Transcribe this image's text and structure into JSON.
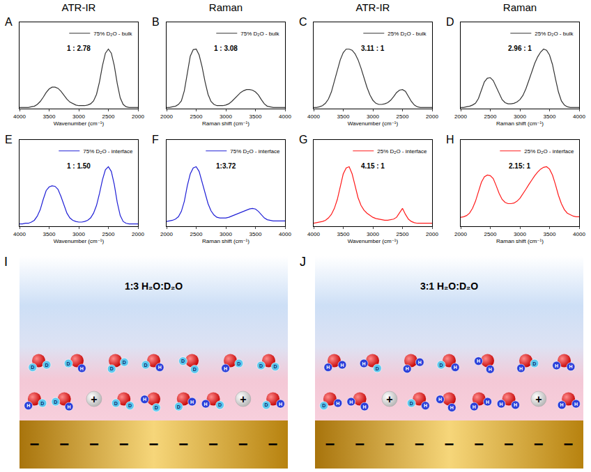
{
  "columns": [
    "ATR-IR",
    "Raman",
    "ATR-IR",
    "Raman"
  ],
  "chart_data": [
    {
      "type": "line",
      "panel": "A",
      "xlabel": "Wavenumber (cm⁻¹)",
      "annotations": [
        "1 : 2.78"
      ],
      "xlim": [
        4000,
        2000
      ],
      "xticks": [
        4000,
        3500,
        3000,
        2500,
        2000
      ],
      "ylim": [
        0,
        1.45
      ],
      "yticks": [],
      "tick_labels": "x",
      "grid": false,
      "legend": "upper right",
      "x": [
        4000,
        3950,
        3900,
        3850,
        3800,
        3750,
        3700,
        3650,
        3600,
        3550,
        3500,
        3450,
        3400,
        3350,
        3300,
        3250,
        3200,
        3150,
        3100,
        3050,
        3000,
        2950,
        2900,
        2850,
        2800,
        2750,
        2700,
        2650,
        2600,
        2550,
        2500,
        2450,
        2400,
        2350,
        2300,
        2250,
        2200,
        2150,
        2100,
        2050,
        2000
      ],
      "series": [
        {
          "name": "75% D₂O - bulk",
          "color": "#333333",
          "values": [
            0.02,
            0.02,
            0.02,
            0.02,
            0.03,
            0.04,
            0.07,
            0.12,
            0.19,
            0.27,
            0.33,
            0.36,
            0.36,
            0.34,
            0.29,
            0.22,
            0.16,
            0.11,
            0.08,
            0.06,
            0.05,
            0.05,
            0.05,
            0.06,
            0.08,
            0.13,
            0.24,
            0.45,
            0.72,
            0.93,
            1.0,
            0.93,
            0.72,
            0.42,
            0.18,
            0.07,
            0.03,
            0.02,
            0.02,
            0.02,
            0.02
          ]
        }
      ]
    },
    {
      "type": "line",
      "panel": "B",
      "xlabel": "Raman shift (cm⁻¹)",
      "annotations": [
        "1 : 3.08"
      ],
      "xlim": [
        2000,
        4000
      ],
      "xticks": [
        2000,
        2500,
        3000,
        3500,
        4000
      ],
      "ylim": [
        0,
        1.45
      ],
      "yticks": [],
      "tick_labels": "x",
      "grid": false,
      "legend": "upper right",
      "x": [
        2000,
        2050,
        2100,
        2150,
        2200,
        2250,
        2300,
        2350,
        2400,
        2450,
        2500,
        2550,
        2600,
        2650,
        2700,
        2750,
        2800,
        2850,
        2900,
        2950,
        3000,
        3050,
        3100,
        3150,
        3200,
        3250,
        3300,
        3350,
        3400,
        3450,
        3500,
        3550,
        3600,
        3650,
        3700,
        3750,
        3800,
        3850,
        3900,
        3950,
        4000
      ],
      "series": [
        {
          "name": "75% D₂O - bulk",
          "color": "#333333",
          "values": [
            0.02,
            0.02,
            0.03,
            0.04,
            0.07,
            0.13,
            0.3,
            0.6,
            0.88,
            0.99,
            1.0,
            0.9,
            0.7,
            0.45,
            0.24,
            0.12,
            0.07,
            0.05,
            0.05,
            0.05,
            0.06,
            0.08,
            0.12,
            0.17,
            0.22,
            0.27,
            0.3,
            0.32,
            0.32,
            0.31,
            0.28,
            0.23,
            0.15,
            0.08,
            0.04,
            0.03,
            0.02,
            0.02,
            0.02,
            0.02,
            0.02
          ]
        }
      ]
    },
    {
      "type": "line",
      "panel": "C",
      "xlabel": "Wavenumber (cm⁻¹)",
      "annotations": [
        "3.11 : 1"
      ],
      "xlim": [
        4000,
        2000
      ],
      "xticks": [
        4000,
        3500,
        3000,
        2500,
        2000
      ],
      "ylim": [
        0,
        1.45
      ],
      "yticks": [],
      "tick_labels": "x",
      "grid": false,
      "legend": "upper right",
      "x": [
        4000,
        3950,
        3900,
        3850,
        3800,
        3750,
        3700,
        3650,
        3600,
        3550,
        3500,
        3450,
        3400,
        3350,
        3300,
        3250,
        3200,
        3150,
        3100,
        3050,
        3000,
        2950,
        2900,
        2850,
        2800,
        2750,
        2700,
        2650,
        2600,
        2550,
        2500,
        2450,
        2400,
        2350,
        2300,
        2250,
        2200,
        2150,
        2100,
        2050,
        2000
      ],
      "series": [
        {
          "name": "25% D₂O - bulk",
          "color": "#333333",
          "values": [
            0.02,
            0.02,
            0.03,
            0.05,
            0.09,
            0.16,
            0.28,
            0.45,
            0.64,
            0.82,
            0.94,
            1.0,
            1.0,
            0.98,
            0.92,
            0.82,
            0.68,
            0.52,
            0.36,
            0.23,
            0.14,
            0.09,
            0.07,
            0.07,
            0.08,
            0.1,
            0.14,
            0.2,
            0.27,
            0.31,
            0.32,
            0.29,
            0.21,
            0.12,
            0.06,
            0.03,
            0.02,
            0.02,
            0.02,
            0.02,
            0.02
          ]
        }
      ]
    },
    {
      "type": "line",
      "panel": "D",
      "xlabel": "Raman shift (cm⁻¹)",
      "annotations": [
        "2.96 : 1"
      ],
      "xlim": [
        2000,
        4000
      ],
      "xticks": [
        2000,
        2500,
        3000,
        3500,
        4000
      ],
      "ylim": [
        0,
        1.45
      ],
      "yticks": [],
      "tick_labels": "x",
      "grid": false,
      "legend": "upper right",
      "x": [
        2000,
        2050,
        2100,
        2150,
        2200,
        2250,
        2300,
        2350,
        2400,
        2450,
        2500,
        2550,
        2600,
        2650,
        2700,
        2750,
        2800,
        2850,
        2900,
        2950,
        3000,
        3050,
        3100,
        3150,
        3200,
        3250,
        3300,
        3350,
        3400,
        3450,
        3500,
        3550,
        3600,
        3650,
        3700,
        3750,
        3800,
        3850,
        3900,
        3950,
        4000
      ],
      "series": [
        {
          "name": "25% D₂O - bulk",
          "color": "#333333",
          "values": [
            0.02,
            0.02,
            0.03,
            0.04,
            0.06,
            0.09,
            0.17,
            0.32,
            0.45,
            0.51,
            0.52,
            0.47,
            0.36,
            0.24,
            0.15,
            0.1,
            0.08,
            0.08,
            0.09,
            0.11,
            0.15,
            0.22,
            0.33,
            0.47,
            0.62,
            0.76,
            0.87,
            0.95,
            1.0,
            0.98,
            0.9,
            0.74,
            0.5,
            0.28,
            0.13,
            0.06,
            0.03,
            0.02,
            0.02,
            0.02,
            0.02
          ]
        }
      ]
    },
    {
      "type": "line",
      "panel": "E",
      "xlabel": "Wavenumber (cm⁻¹)",
      "annotations": [
        "1 : 1.50"
      ],
      "xlim": [
        4000,
        2000
      ],
      "xticks": [
        4000,
        3500,
        3000,
        2500,
        2000
      ],
      "ylim": [
        0,
        1.45
      ],
      "yticks": [],
      "tick_labels": "x",
      "grid": false,
      "legend": "upper right",
      "x": [
        4000,
        3950,
        3900,
        3850,
        3800,
        3750,
        3700,
        3650,
        3600,
        3550,
        3500,
        3450,
        3400,
        3350,
        3300,
        3250,
        3200,
        3150,
        3100,
        3050,
        3000,
        2950,
        2900,
        2850,
        2800,
        2750,
        2700,
        2650,
        2600,
        2550,
        2500,
        2450,
        2400,
        2350,
        2300,
        2250,
        2200,
        2150,
        2100,
        2050,
        2000
      ],
      "series": [
        {
          "name": "75% D₂O - interface",
          "color": "#1f1fd6",
          "values": [
            0.04,
            0.04,
            0.05,
            0.05,
            0.07,
            0.1,
            0.17,
            0.28,
            0.45,
            0.6,
            0.66,
            0.68,
            0.67,
            0.62,
            0.5,
            0.35,
            0.22,
            0.14,
            0.1,
            0.08,
            0.07,
            0.07,
            0.08,
            0.1,
            0.14,
            0.22,
            0.35,
            0.55,
            0.78,
            0.95,
            1.0,
            0.92,
            0.7,
            0.4,
            0.18,
            0.08,
            0.05,
            0.04,
            0.04,
            0.04,
            0.04
          ]
        }
      ]
    },
    {
      "type": "line",
      "panel": "F",
      "xlabel": "Raman shift (cm⁻¹)",
      "annotations": [
        "1:3.72"
      ],
      "xlim": [
        2000,
        4000
      ],
      "xticks": [
        2000,
        2500,
        3000,
        3500,
        4000
      ],
      "ylim": [
        0,
        1.45
      ],
      "yticks": [],
      "tick_labels": "x",
      "grid": false,
      "legend": "upper right",
      "x": [
        2000,
        2050,
        2100,
        2150,
        2200,
        2250,
        2300,
        2350,
        2400,
        2450,
        2500,
        2550,
        2600,
        2650,
        2700,
        2750,
        2800,
        2850,
        2900,
        2950,
        3000,
        3050,
        3100,
        3150,
        3200,
        3250,
        3300,
        3350,
        3400,
        3450,
        3500,
        3550,
        3600,
        3650,
        3700,
        3750,
        3800,
        3850,
        3900,
        3950,
        4000
      ],
      "series": [
        {
          "name": "75% D₂O - interface",
          "color": "#1f1fd6",
          "values": [
            0.08,
            0.09,
            0.1,
            0.12,
            0.16,
            0.25,
            0.42,
            0.68,
            0.88,
            0.98,
            1.0,
            0.92,
            0.75,
            0.55,
            0.38,
            0.26,
            0.19,
            0.15,
            0.14,
            0.14,
            0.14,
            0.15,
            0.17,
            0.19,
            0.21,
            0.23,
            0.25,
            0.27,
            0.29,
            0.3,
            0.29,
            0.25,
            0.19,
            0.14,
            0.11,
            0.1,
            0.09,
            0.09,
            0.09,
            0.09,
            0.09
          ]
        }
      ]
    },
    {
      "type": "line",
      "panel": "G",
      "xlabel": "Wavenumber (cm⁻¹)",
      "annotations": [
        "4.15 : 1"
      ],
      "xlim": [
        4000,
        2000
      ],
      "xticks": [
        4000,
        3500,
        3000,
        2500,
        2000
      ],
      "ylim": [
        0,
        1.45
      ],
      "yticks": [],
      "tick_labels": "x",
      "grid": false,
      "legend": "upper right",
      "x": [
        4000,
        3950,
        3900,
        3850,
        3800,
        3750,
        3700,
        3650,
        3600,
        3550,
        3500,
        3450,
        3400,
        3350,
        3300,
        3250,
        3200,
        3150,
        3100,
        3050,
        3000,
        2950,
        2900,
        2850,
        2800,
        2750,
        2700,
        2650,
        2600,
        2550,
        2500,
        2450,
        2400,
        2350,
        2300,
        2250,
        2200,
        2150,
        2100,
        2050,
        2000
      ],
      "series": [
        {
          "name": "25% D₂O - interface",
          "color": "#ff1a1a",
          "values": [
            0.05,
            0.06,
            0.07,
            0.08,
            0.1,
            0.14,
            0.2,
            0.3,
            0.45,
            0.68,
            0.88,
            0.98,
            1.0,
            0.88,
            0.68,
            0.48,
            0.35,
            0.27,
            0.22,
            0.18,
            0.15,
            0.13,
            0.12,
            0.11,
            0.1,
            0.1,
            0.11,
            0.12,
            0.15,
            0.22,
            0.3,
            0.2,
            0.12,
            0.08,
            0.06,
            0.05,
            0.05,
            0.05,
            0.05,
            0.05,
            0.05
          ]
        }
      ]
    },
    {
      "type": "line",
      "panel": "H",
      "xlabel": "Raman shift (cm⁻¹)",
      "annotations": [
        "2.15: 1"
      ],
      "xlim": [
        2000,
        4000
      ],
      "xticks": [
        2000,
        2500,
        3000,
        3500,
        4000
      ],
      "ylim": [
        0,
        1.45
      ],
      "yticks": [],
      "tick_labels": "x",
      "grid": false,
      "legend": "upper right",
      "x": [
        2000,
        2050,
        2100,
        2150,
        2200,
        2250,
        2300,
        2350,
        2400,
        2450,
        2500,
        2550,
        2600,
        2650,
        2700,
        2750,
        2800,
        2850,
        2900,
        2950,
        3000,
        3050,
        3100,
        3150,
        3200,
        3250,
        3300,
        3350,
        3400,
        3450,
        3500,
        3550,
        3600,
        3650,
        3700,
        3750,
        3800,
        3850,
        3900,
        3950,
        4000
      ],
      "series": [
        {
          "name": "25% D₂O - interface",
          "color": "#ff1a1a",
          "values": [
            0.15,
            0.16,
            0.18,
            0.22,
            0.3,
            0.42,
            0.58,
            0.74,
            0.83,
            0.86,
            0.85,
            0.8,
            0.68,
            0.55,
            0.45,
            0.4,
            0.38,
            0.38,
            0.39,
            0.42,
            0.47,
            0.54,
            0.62,
            0.7,
            0.78,
            0.85,
            0.91,
            0.96,
            0.99,
            1.0,
            0.96,
            0.86,
            0.7,
            0.52,
            0.38,
            0.28,
            0.22,
            0.19,
            0.17,
            0.16,
            0.16
          ]
        }
      ]
    }
  ],
  "diagrams": [
    {
      "panel": "I",
      "title": "1:3 H₂O:D₂O",
      "upper_row": [
        [
          "D",
          "D"
        ],
        [
          "H",
          "D"
        ],
        [
          "D",
          "D"
        ],
        [
          "H",
          "D"
        ],
        [
          "D",
          "D"
        ],
        [
          "D",
          "H"
        ],
        [
          "D",
          "D"
        ]
      ],
      "lower_row": [
        [
          "D",
          "H"
        ],
        [
          "H",
          "D"
        ],
        "+",
        [
          "D",
          "D"
        ],
        [
          "D",
          "H"
        ],
        [
          "H",
          "D"
        ],
        [
          "D",
          "H"
        ],
        "+",
        [
          "H",
          "D"
        ]
      ],
      "electrode": {
        "charge": "−",
        "count": 9
      }
    },
    {
      "panel": "J",
      "title": "3:1 H₂O:D₂O",
      "upper_row": [
        [
          "H",
          "H"
        ],
        [
          "D",
          "H"
        ],
        [
          "H",
          "H"
        ],
        [
          "H",
          "D"
        ],
        [
          "H",
          "H"
        ],
        [
          "D",
          "H"
        ],
        [
          "H",
          "H"
        ]
      ],
      "lower_row": [
        [
          "H",
          "D"
        ],
        [
          "H",
          "H"
        ],
        "+",
        [
          "H",
          "D"
        ],
        [
          "H",
          "H"
        ],
        [
          "H",
          "H"
        ],
        [
          "H",
          "H"
        ],
        "+",
        [
          "H",
          "H"
        ]
      ],
      "electrode": {
        "charge": "−",
        "count": 9
      }
    }
  ]
}
